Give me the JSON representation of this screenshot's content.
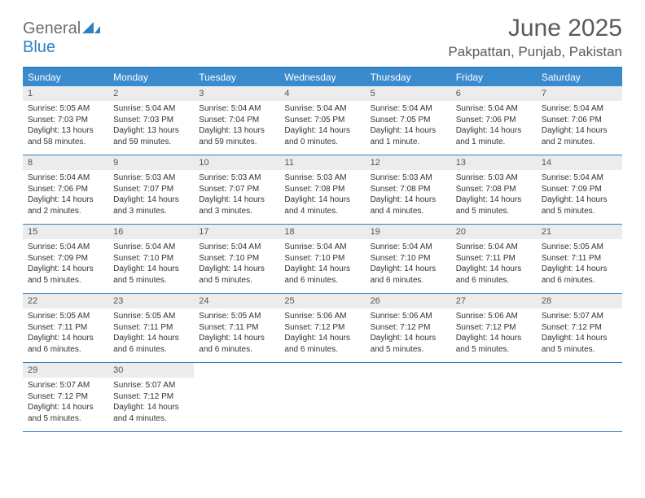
{
  "logo": {
    "line1": "General",
    "line2": "Blue"
  },
  "title": "June 2025",
  "location": "Pakpattan, Punjab, Pakistan",
  "colors": {
    "header_bg": "#3a8bce",
    "border": "#2f7fc2",
    "daynum_bg": "#ececec",
    "text": "#333333",
    "title_text": "#5a5a5a"
  },
  "weekdays": [
    "Sunday",
    "Monday",
    "Tuesday",
    "Wednesday",
    "Thursday",
    "Friday",
    "Saturday"
  ],
  "weeks": [
    [
      {
        "n": "1",
        "sr": "Sunrise: 5:05 AM",
        "ss": "Sunset: 7:03 PM",
        "dl": "Daylight: 13 hours and 58 minutes."
      },
      {
        "n": "2",
        "sr": "Sunrise: 5:04 AM",
        "ss": "Sunset: 7:03 PM",
        "dl": "Daylight: 13 hours and 59 minutes."
      },
      {
        "n": "3",
        "sr": "Sunrise: 5:04 AM",
        "ss": "Sunset: 7:04 PM",
        "dl": "Daylight: 13 hours and 59 minutes."
      },
      {
        "n": "4",
        "sr": "Sunrise: 5:04 AM",
        "ss": "Sunset: 7:05 PM",
        "dl": "Daylight: 14 hours and 0 minutes."
      },
      {
        "n": "5",
        "sr": "Sunrise: 5:04 AM",
        "ss": "Sunset: 7:05 PM",
        "dl": "Daylight: 14 hours and 1 minute."
      },
      {
        "n": "6",
        "sr": "Sunrise: 5:04 AM",
        "ss": "Sunset: 7:06 PM",
        "dl": "Daylight: 14 hours and 1 minute."
      },
      {
        "n": "7",
        "sr": "Sunrise: 5:04 AM",
        "ss": "Sunset: 7:06 PM",
        "dl": "Daylight: 14 hours and 2 minutes."
      }
    ],
    [
      {
        "n": "8",
        "sr": "Sunrise: 5:04 AM",
        "ss": "Sunset: 7:06 PM",
        "dl": "Daylight: 14 hours and 2 minutes."
      },
      {
        "n": "9",
        "sr": "Sunrise: 5:03 AM",
        "ss": "Sunset: 7:07 PM",
        "dl": "Daylight: 14 hours and 3 minutes."
      },
      {
        "n": "10",
        "sr": "Sunrise: 5:03 AM",
        "ss": "Sunset: 7:07 PM",
        "dl": "Daylight: 14 hours and 3 minutes."
      },
      {
        "n": "11",
        "sr": "Sunrise: 5:03 AM",
        "ss": "Sunset: 7:08 PM",
        "dl": "Daylight: 14 hours and 4 minutes."
      },
      {
        "n": "12",
        "sr": "Sunrise: 5:03 AM",
        "ss": "Sunset: 7:08 PM",
        "dl": "Daylight: 14 hours and 4 minutes."
      },
      {
        "n": "13",
        "sr": "Sunrise: 5:03 AM",
        "ss": "Sunset: 7:08 PM",
        "dl": "Daylight: 14 hours and 5 minutes."
      },
      {
        "n": "14",
        "sr": "Sunrise: 5:04 AM",
        "ss": "Sunset: 7:09 PM",
        "dl": "Daylight: 14 hours and 5 minutes."
      }
    ],
    [
      {
        "n": "15",
        "sr": "Sunrise: 5:04 AM",
        "ss": "Sunset: 7:09 PM",
        "dl": "Daylight: 14 hours and 5 minutes."
      },
      {
        "n": "16",
        "sr": "Sunrise: 5:04 AM",
        "ss": "Sunset: 7:10 PM",
        "dl": "Daylight: 14 hours and 5 minutes."
      },
      {
        "n": "17",
        "sr": "Sunrise: 5:04 AM",
        "ss": "Sunset: 7:10 PM",
        "dl": "Daylight: 14 hours and 5 minutes."
      },
      {
        "n": "18",
        "sr": "Sunrise: 5:04 AM",
        "ss": "Sunset: 7:10 PM",
        "dl": "Daylight: 14 hours and 6 minutes."
      },
      {
        "n": "19",
        "sr": "Sunrise: 5:04 AM",
        "ss": "Sunset: 7:10 PM",
        "dl": "Daylight: 14 hours and 6 minutes."
      },
      {
        "n": "20",
        "sr": "Sunrise: 5:04 AM",
        "ss": "Sunset: 7:11 PM",
        "dl": "Daylight: 14 hours and 6 minutes."
      },
      {
        "n": "21",
        "sr": "Sunrise: 5:05 AM",
        "ss": "Sunset: 7:11 PM",
        "dl": "Daylight: 14 hours and 6 minutes."
      }
    ],
    [
      {
        "n": "22",
        "sr": "Sunrise: 5:05 AM",
        "ss": "Sunset: 7:11 PM",
        "dl": "Daylight: 14 hours and 6 minutes."
      },
      {
        "n": "23",
        "sr": "Sunrise: 5:05 AM",
        "ss": "Sunset: 7:11 PM",
        "dl": "Daylight: 14 hours and 6 minutes."
      },
      {
        "n": "24",
        "sr": "Sunrise: 5:05 AM",
        "ss": "Sunset: 7:11 PM",
        "dl": "Daylight: 14 hours and 6 minutes."
      },
      {
        "n": "25",
        "sr": "Sunrise: 5:06 AM",
        "ss": "Sunset: 7:12 PM",
        "dl": "Daylight: 14 hours and 6 minutes."
      },
      {
        "n": "26",
        "sr": "Sunrise: 5:06 AM",
        "ss": "Sunset: 7:12 PM",
        "dl": "Daylight: 14 hours and 5 minutes."
      },
      {
        "n": "27",
        "sr": "Sunrise: 5:06 AM",
        "ss": "Sunset: 7:12 PM",
        "dl": "Daylight: 14 hours and 5 minutes."
      },
      {
        "n": "28",
        "sr": "Sunrise: 5:07 AM",
        "ss": "Sunset: 7:12 PM",
        "dl": "Daylight: 14 hours and 5 minutes."
      }
    ],
    [
      {
        "n": "29",
        "sr": "Sunrise: 5:07 AM",
        "ss": "Sunset: 7:12 PM",
        "dl": "Daylight: 14 hours and 5 minutes."
      },
      {
        "n": "30",
        "sr": "Sunrise: 5:07 AM",
        "ss": "Sunset: 7:12 PM",
        "dl": "Daylight: 14 hours and 4 minutes."
      },
      null,
      null,
      null,
      null,
      null
    ]
  ]
}
